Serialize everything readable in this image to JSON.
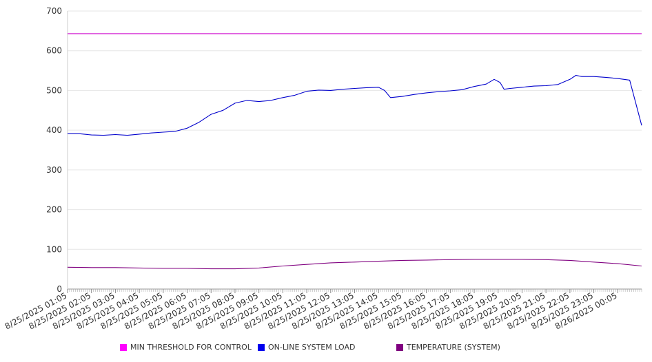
{
  "chart_data": {
    "type": "line",
    "ylim": [
      0,
      700
    ],
    "yticks": [
      0,
      100,
      200,
      300,
      400,
      500,
      600,
      700
    ],
    "x_tick_labels": [
      "8/25/2025 01:05",
      "8/25/2025 02:05",
      "8/25/2025 03:05",
      "8/25/2025 04:05",
      "8/25/2025 05:05",
      "8/25/2025 06:05",
      "8/25/2025 07:05",
      "8/25/2025 08:05",
      "8/25/2025 09:05",
      "8/25/2025 10:05",
      "8/25/2025 11:05",
      "8/25/2025 12:05",
      "8/25/2025 13:05",
      "8/25/2025 14:05",
      "8/25/2025 15:05",
      "8/25/2025 16:05",
      "8/25/2025 17:05",
      "8/25/2025 18:05",
      "8/25/2025 19:05",
      "8/25/2025 20:05",
      "8/25/2025 21:05",
      "8/25/2025 22:05",
      "8/25/2025 23:05",
      "8/26/2025 00:05"
    ],
    "x_end": "8/26/2025 01:05",
    "grid": true,
    "legend_position": "bottom",
    "series": [
      {
        "name": "MIN THRESHOLD FOR CONTROL",
        "color": "#cc00cc",
        "points": [
          [
            "8/25/2025 01:05",
            643
          ],
          [
            "8/26/2025 01:05",
            643
          ]
        ]
      },
      {
        "name": "ON-LINE SYSTEM LOAD",
        "color": "#0000cc",
        "points": [
          [
            "8/25/2025 01:05",
            391
          ],
          [
            "8/25/2025 01:35",
            391
          ],
          [
            "8/25/2025 02:05",
            388
          ],
          [
            "8/25/2025 02:35",
            387
          ],
          [
            "8/25/2025 03:05",
            389
          ],
          [
            "8/25/2025 03:35",
            387
          ],
          [
            "8/25/2025 04:05",
            390
          ],
          [
            "8/25/2025 04:35",
            393
          ],
          [
            "8/25/2025 05:05",
            395
          ],
          [
            "8/25/2025 05:35",
            397
          ],
          [
            "8/25/2025 06:05",
            405
          ],
          [
            "8/25/2025 06:35",
            420
          ],
          [
            "8/25/2025 07:05",
            440
          ],
          [
            "8/25/2025 07:35",
            450
          ],
          [
            "8/25/2025 08:05",
            468
          ],
          [
            "8/25/2025 08:35",
            475
          ],
          [
            "8/25/2025 09:05",
            472
          ],
          [
            "8/25/2025 09:35",
            475
          ],
          [
            "8/25/2025 10:05",
            482
          ],
          [
            "8/25/2025 10:35",
            488
          ],
          [
            "8/25/2025 11:05",
            498
          ],
          [
            "8/25/2025 11:35",
            501
          ],
          [
            "8/25/2025 12:05",
            500
          ],
          [
            "8/25/2025 12:35",
            503
          ],
          [
            "8/25/2025 13:05",
            505
          ],
          [
            "8/25/2025 13:35",
            507
          ],
          [
            "8/25/2025 14:05",
            508
          ],
          [
            "8/25/2025 14:20",
            500
          ],
          [
            "8/25/2025 14:35",
            482
          ],
          [
            "8/25/2025 15:05",
            485
          ],
          [
            "8/25/2025 15:35",
            490
          ],
          [
            "8/25/2025 16:05",
            494
          ],
          [
            "8/25/2025 16:35",
            497
          ],
          [
            "8/25/2025 17:05",
            499
          ],
          [
            "8/25/2025 17:35",
            502
          ],
          [
            "8/25/2025 18:05",
            510
          ],
          [
            "8/25/2025 18:35",
            516
          ],
          [
            "8/25/2025 18:55",
            528
          ],
          [
            "8/25/2025 19:10",
            520
          ],
          [
            "8/25/2025 19:20",
            503
          ],
          [
            "8/25/2025 19:35",
            505
          ],
          [
            "8/25/2025 20:05",
            508
          ],
          [
            "8/25/2025 20:35",
            511
          ],
          [
            "8/25/2025 21:05",
            512
          ],
          [
            "8/25/2025 21:35",
            515
          ],
          [
            "8/25/2025 22:05",
            528
          ],
          [
            "8/25/2025 22:20",
            538
          ],
          [
            "8/25/2025 22:35",
            535
          ],
          [
            "8/25/2025 23:05",
            535
          ],
          [
            "8/25/2025 23:35",
            533
          ],
          [
            "8/26/2025 00:05",
            530
          ],
          [
            "8/26/2025 00:35",
            526
          ],
          [
            "8/26/2025 01:05",
            412
          ]
        ]
      },
      {
        "name": "TEMPERATURE (SYSTEM)",
        "color": "#800080",
        "points": [
          [
            "8/25/2025 01:05",
            55
          ],
          [
            "8/25/2025 02:05",
            54
          ],
          [
            "8/25/2025 03:05",
            54
          ],
          [
            "8/25/2025 04:05",
            53
          ],
          [
            "8/25/2025 05:05",
            52
          ],
          [
            "8/25/2025 06:05",
            52
          ],
          [
            "8/25/2025 07:05",
            51
          ],
          [
            "8/25/2025 08:05",
            51
          ],
          [
            "8/25/2025 09:05",
            53
          ],
          [
            "8/25/2025 10:05",
            58
          ],
          [
            "8/25/2025 11:05",
            62
          ],
          [
            "8/25/2025 12:05",
            66
          ],
          [
            "8/25/2025 13:05",
            68
          ],
          [
            "8/25/2025 14:05",
            70
          ],
          [
            "8/25/2025 15:05",
            72
          ],
          [
            "8/25/2025 16:05",
            73
          ],
          [
            "8/25/2025 17:05",
            74
          ],
          [
            "8/25/2025 18:05",
            75
          ],
          [
            "8/25/2025 19:05",
            75
          ],
          [
            "8/25/2025 20:05",
            75
          ],
          [
            "8/25/2025 21:05",
            74
          ],
          [
            "8/25/2025 22:05",
            72
          ],
          [
            "8/25/2025 23:05",
            68
          ],
          [
            "8/26/2025 00:05",
            64
          ],
          [
            "8/26/2025 01:05",
            58
          ]
        ]
      }
    ]
  }
}
